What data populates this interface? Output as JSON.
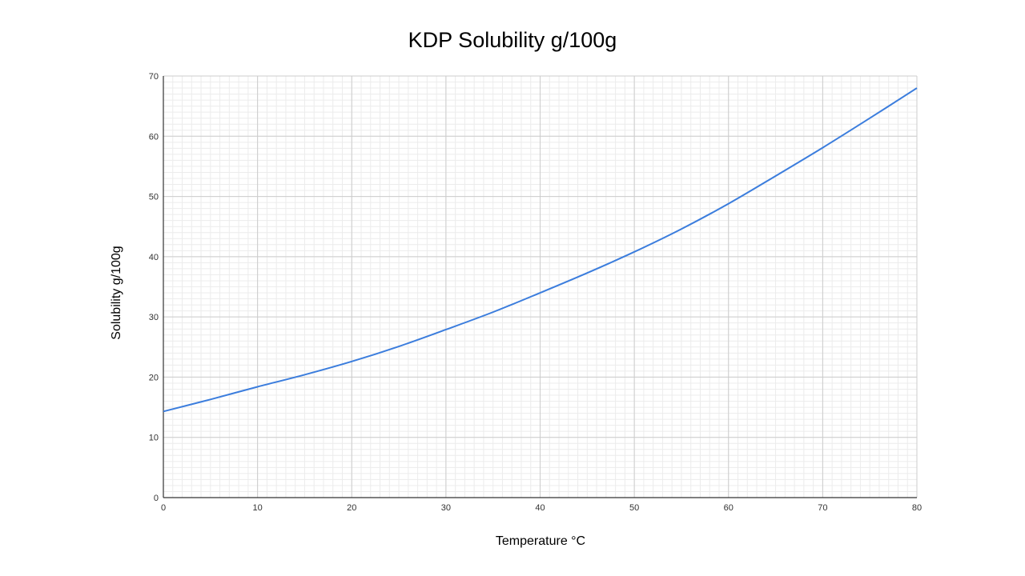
{
  "chart_data": {
    "type": "line",
    "title": "KDP Solubility g/100g",
    "xlabel": "Temperature  °C",
    "ylabel": "Solubility g/100g",
    "xlim": [
      0,
      80
    ],
    "ylim": [
      0,
      70
    ],
    "xticks": [
      0,
      10,
      20,
      30,
      40,
      50,
      60,
      70,
      80
    ],
    "yticks": [
      0,
      10,
      20,
      30,
      40,
      50,
      60,
      70
    ],
    "grid": true,
    "minor_grid": true,
    "legend": "none",
    "series": [
      {
        "color": "#3b7ddd",
        "x": [
          0,
          5,
          10,
          15,
          20,
          25,
          30,
          35,
          40,
          45,
          50,
          55,
          60,
          65,
          70,
          75,
          80
        ],
        "y": [
          14.3,
          16.3,
          18.4,
          20.4,
          22.6,
          25.1,
          27.9,
          30.8,
          34.0,
          37.3,
          40.8,
          44.6,
          48.8,
          53.4,
          58.1,
          63.0,
          68.0
        ]
      }
    ]
  }
}
